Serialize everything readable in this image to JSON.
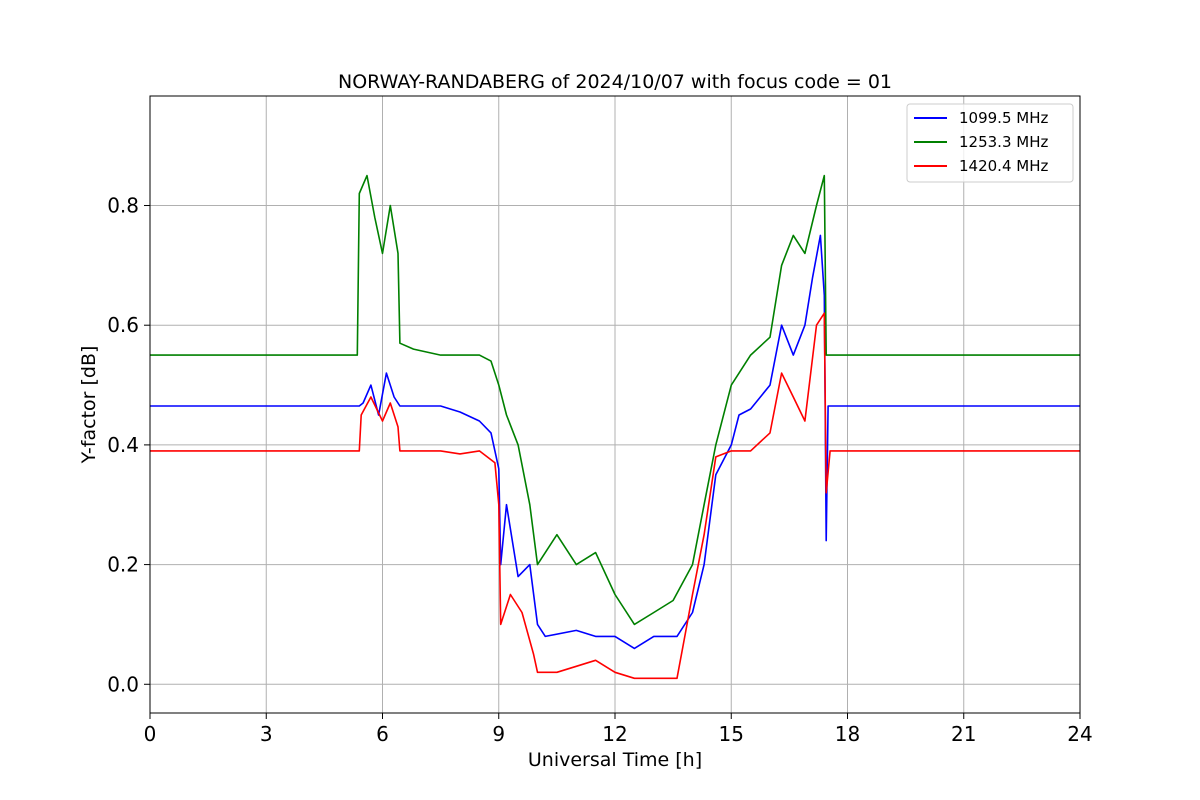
{
  "chart_data": {
    "type": "line",
    "title": "NORWAY-RANDABERG of 2024/10/07 with focus code = 01",
    "xlabel": "Universal Time [h]",
    "ylabel": "Y-factor [dB]",
    "xlim": [
      0,
      24
    ],
    "ylim": [
      -0.048,
      0.983
    ],
    "xticks": [
      0,
      3,
      6,
      9,
      12,
      15,
      18,
      21,
      24
    ],
    "yticks": [
      0.0,
      0.2,
      0.4,
      0.6,
      0.8
    ],
    "grid": true,
    "legend_position": "top-right",
    "series": [
      {
        "name": "1099.5 MHz",
        "color": "#0000ff",
        "points": [
          [
            0,
            0.465
          ],
          [
            5.4,
            0.465
          ],
          [
            5.5,
            0.47
          ],
          [
            5.7,
            0.5
          ],
          [
            5.9,
            0.45
          ],
          [
            6.1,
            0.52
          ],
          [
            6.3,
            0.48
          ],
          [
            6.45,
            0.465
          ],
          [
            7.5,
            0.465
          ],
          [
            8.0,
            0.455
          ],
          [
            8.5,
            0.44
          ],
          [
            8.8,
            0.42
          ],
          [
            9.0,
            0.36
          ],
          [
            9.05,
            0.2
          ],
          [
            9.2,
            0.3
          ],
          [
            9.5,
            0.18
          ],
          [
            9.8,
            0.2
          ],
          [
            10.0,
            0.1
          ],
          [
            10.2,
            0.08
          ],
          [
            11.0,
            0.09
          ],
          [
            11.5,
            0.08
          ],
          [
            12.0,
            0.08
          ],
          [
            12.5,
            0.06
          ],
          [
            13.0,
            0.08
          ],
          [
            13.6,
            0.08
          ],
          [
            14.0,
            0.12
          ],
          [
            14.3,
            0.2
          ],
          [
            14.6,
            0.35
          ],
          [
            15.0,
            0.4
          ],
          [
            15.2,
            0.45
          ],
          [
            15.5,
            0.46
          ],
          [
            16.0,
            0.5
          ],
          [
            16.3,
            0.6
          ],
          [
            16.6,
            0.55
          ],
          [
            16.9,
            0.6
          ],
          [
            17.1,
            0.68
          ],
          [
            17.3,
            0.75
          ],
          [
            17.4,
            0.65
          ],
          [
            17.45,
            0.24
          ],
          [
            17.5,
            0.465
          ],
          [
            24,
            0.465
          ]
        ]
      },
      {
        "name": "1253.3 MHz",
        "color": "#008000",
        "points": [
          [
            0,
            0.55
          ],
          [
            5.35,
            0.55
          ],
          [
            5.4,
            0.82
          ],
          [
            5.6,
            0.85
          ],
          [
            5.8,
            0.78
          ],
          [
            6.0,
            0.72
          ],
          [
            6.2,
            0.8
          ],
          [
            6.4,
            0.72
          ],
          [
            6.45,
            0.57
          ],
          [
            6.8,
            0.56
          ],
          [
            7.5,
            0.55
          ],
          [
            8.0,
            0.55
          ],
          [
            8.5,
            0.55
          ],
          [
            8.8,
            0.54
          ],
          [
            9.0,
            0.5
          ],
          [
            9.2,
            0.45
          ],
          [
            9.5,
            0.4
          ],
          [
            9.8,
            0.3
          ],
          [
            10.0,
            0.2
          ],
          [
            10.5,
            0.25
          ],
          [
            11.0,
            0.2
          ],
          [
            11.5,
            0.22
          ],
          [
            12.0,
            0.15
          ],
          [
            12.5,
            0.1
          ],
          [
            13.0,
            0.12
          ],
          [
            13.5,
            0.14
          ],
          [
            14.0,
            0.2
          ],
          [
            14.3,
            0.3
          ],
          [
            14.6,
            0.4
          ],
          [
            15.0,
            0.5
          ],
          [
            15.5,
            0.55
          ],
          [
            16.0,
            0.58
          ],
          [
            16.3,
            0.7
          ],
          [
            16.6,
            0.75
          ],
          [
            16.9,
            0.72
          ],
          [
            17.2,
            0.8
          ],
          [
            17.4,
            0.85
          ],
          [
            17.45,
            0.55
          ],
          [
            24,
            0.55
          ]
        ]
      },
      {
        "name": "1420.4 MHz",
        "color": "#ff0000",
        "points": [
          [
            0,
            0.39
          ],
          [
            5.4,
            0.39
          ],
          [
            5.45,
            0.45
          ],
          [
            5.7,
            0.48
          ],
          [
            6.0,
            0.44
          ],
          [
            6.2,
            0.47
          ],
          [
            6.4,
            0.43
          ],
          [
            6.45,
            0.39
          ],
          [
            7.5,
            0.39
          ],
          [
            8.0,
            0.385
          ],
          [
            8.5,
            0.39
          ],
          [
            8.9,
            0.37
          ],
          [
            9.0,
            0.3
          ],
          [
            9.05,
            0.1
          ],
          [
            9.3,
            0.15
          ],
          [
            9.6,
            0.12
          ],
          [
            9.9,
            0.05
          ],
          [
            10.0,
            0.02
          ],
          [
            10.5,
            0.02
          ],
          [
            11.0,
            0.03
          ],
          [
            11.5,
            0.04
          ],
          [
            12.0,
            0.02
          ],
          [
            12.5,
            0.01
          ],
          [
            13.0,
            0.01
          ],
          [
            13.6,
            0.01
          ],
          [
            13.8,
            0.08
          ],
          [
            14.0,
            0.15
          ],
          [
            14.3,
            0.25
          ],
          [
            14.6,
            0.38
          ],
          [
            15.0,
            0.39
          ],
          [
            15.5,
            0.39
          ],
          [
            16.0,
            0.42
          ],
          [
            16.3,
            0.52
          ],
          [
            16.6,
            0.48
          ],
          [
            16.9,
            0.44
          ],
          [
            17.2,
            0.6
          ],
          [
            17.4,
            0.62
          ],
          [
            17.45,
            0.32
          ],
          [
            17.55,
            0.39
          ],
          [
            24,
            0.39
          ]
        ]
      }
    ]
  }
}
